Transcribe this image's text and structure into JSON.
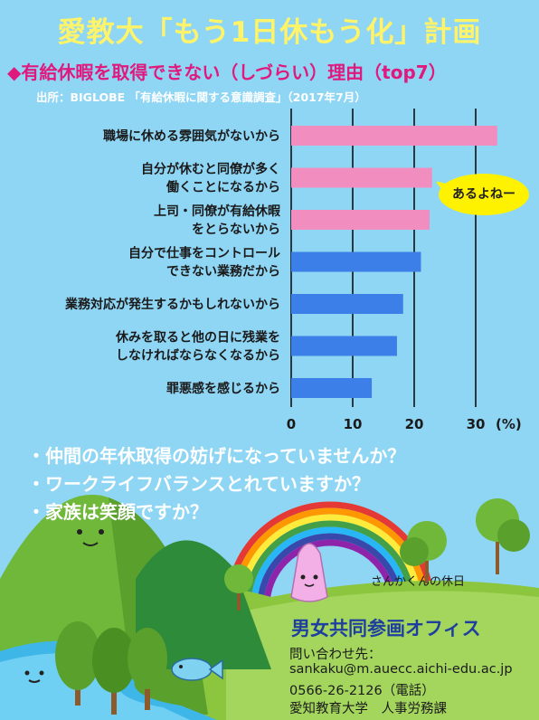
{
  "title": "愛教大「もう1日休もう化」計画",
  "subtitle": "◆有給休暇を取得できない（しづらい）理由（top7）",
  "source": "出所：BIGLOBE 「有給休暇に関する意識調査」（2017年7月）",
  "colors": {
    "pink": "#f28dc0",
    "blue": "#3d7fe8",
    "title_yellow": "#fff36a",
    "bubble": "#fff200"
  },
  "chart_data": {
    "type": "bar",
    "orientation": "horizontal",
    "unit": "(%)",
    "xlim": [
      0,
      33
    ],
    "xticks": [
      0,
      10,
      20,
      30
    ],
    "grid": true,
    "categories": [
      [
        "職場に休める雰囲気がないから"
      ],
      [
        "自分が休むと同僚が多く",
        "働くことになるから"
      ],
      [
        "上司・同僚が有給休暇",
        "をとらないから"
      ],
      [
        "自分で仕事をコントロール",
        "できない業務だから"
      ],
      [
        "業務対応が発生するかもしれないから"
      ],
      [
        "休みを取ると他の日に残業を",
        "しなければならなくなるから"
      ],
      [
        "罪悪感を感じるから"
      ]
    ],
    "values": [
      33.5,
      22.9,
      22.5,
      21.1,
      18.2,
      17.2,
      13.1
    ],
    "bar_colors": [
      "pink",
      "pink",
      "pink",
      "blue",
      "blue",
      "blue",
      "blue"
    ]
  },
  "bubble_text": "あるよねー",
  "bullets": [
    "・仲間の年休取得の妨げになっていませんか？",
    "・ワークライフバランスとれていますか？",
    "・家族は笑顔ですか？"
  ],
  "mascot_caption": "さんかくんの休日",
  "office": "男女共同参画オフィス",
  "contact": {
    "heading": "問い合わせ先：",
    "email": "sankaku@m.auecc.aichi-edu.ac.jp",
    "phone": "0566-26-2126（電話）",
    "org": "愛知教育大学　人事労務課"
  }
}
